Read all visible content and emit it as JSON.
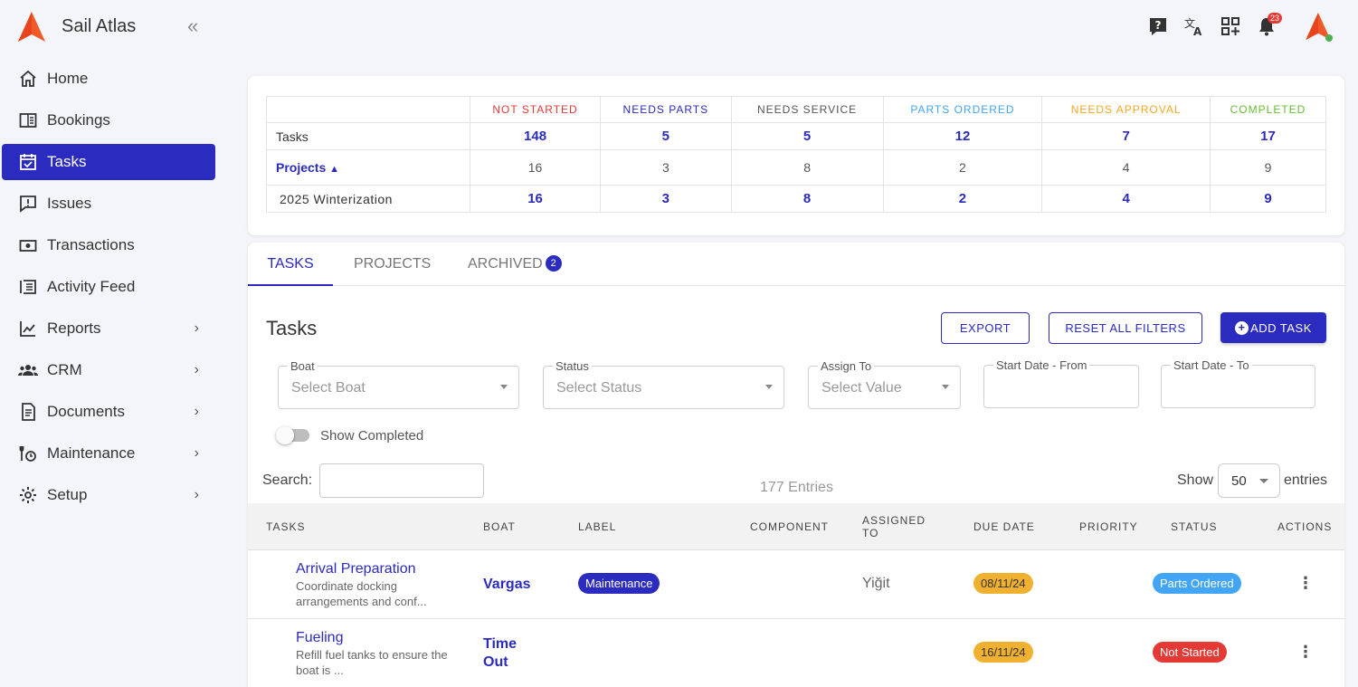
{
  "app": {
    "brand": "Sail Atlas",
    "notifications_count": "23"
  },
  "sidebar": {
    "items": [
      {
        "label": "Home",
        "icon": "home-icon"
      },
      {
        "label": "Bookings",
        "icon": "book-icon"
      },
      {
        "label": "Tasks",
        "icon": "calendar-check-icon",
        "active": true
      },
      {
        "label": "Issues",
        "icon": "issue-icon"
      },
      {
        "label": "Transactions",
        "icon": "money-icon"
      },
      {
        "label": "Activity Feed",
        "icon": "feed-icon"
      },
      {
        "label": "Reports",
        "icon": "chart-icon",
        "has_submenu": true
      },
      {
        "label": "CRM",
        "icon": "people-icon",
        "has_submenu": true
      },
      {
        "label": "Documents",
        "icon": "documents-icon",
        "has_submenu": true
      },
      {
        "label": "Maintenance",
        "icon": "wrench-icon",
        "has_submenu": true
      },
      {
        "label": "Setup",
        "icon": "gear-icon",
        "has_submenu": true
      }
    ]
  },
  "summary": {
    "columns": [
      {
        "label": "NOT STARTED",
        "color": "#e53935"
      },
      {
        "label": "NEEDS PARTS",
        "color": "#2b2bbf"
      },
      {
        "label": "NEEDS SERVICE",
        "color": "#555555"
      },
      {
        "label": "PARTS ORDERED",
        "color": "#42a5f5"
      },
      {
        "label": "NEEDS APPROVAL",
        "color": "#f5a623"
      },
      {
        "label": "COMPLETED",
        "color": "#66bb33"
      }
    ],
    "rows": [
      {
        "label": "Tasks",
        "values": [
          "148",
          "5",
          "5",
          "12",
          "7",
          "17"
        ]
      },
      {
        "label": "Projects",
        "values": [
          "16",
          "3",
          "8",
          "2",
          "4",
          "9"
        ]
      },
      {
        "label": "2025 Winterization",
        "values": [
          "16",
          "3",
          "8",
          "2",
          "4",
          "9"
        ]
      }
    ]
  },
  "tabs": [
    {
      "label": "TASKS",
      "active": true
    },
    {
      "label": "PROJECTS"
    },
    {
      "label": "ARCHIVED",
      "badge": "2"
    }
  ],
  "tasks": {
    "title": "Tasks",
    "buttons": {
      "export": "EXPORT",
      "reset": "RESET ALL FILTERS",
      "add": "ADD TASK"
    },
    "filters": {
      "boat": {
        "label": "Boat",
        "placeholder": "Select Boat"
      },
      "status": {
        "label": "Status",
        "placeholder": "Select Status"
      },
      "assign": {
        "label": "Assign To",
        "placeholder": "Select Value"
      },
      "start_from": {
        "label": "Start Date - From"
      },
      "start_to": {
        "label": "Start Date - To"
      }
    },
    "show_completed": "Show Completed",
    "search_label": "Search:",
    "entries_count": "177 Entries",
    "show_label": "Show",
    "page_size": "50",
    "entries_label": "entries",
    "columns": [
      "TASKS",
      "BOAT",
      "LABEL",
      "COMPONENT",
      "ASSIGNED TO",
      "DUE DATE",
      "PRIORITY",
      "STATUS",
      "ACTIONS"
    ],
    "rows": [
      {
        "title": "Arrival Preparation",
        "desc": "Coordinate docking arrangements and conf...",
        "boat": "Vargas",
        "label": "Maintenance",
        "assigned": "Yiğit",
        "due": "08/11/24",
        "status": "Parts Ordered",
        "status_color": "#42a5f5"
      },
      {
        "title": "Fueling",
        "desc": "Refill fuel tanks to ensure the boat is ...",
        "boat_line1": "Time",
        "boat_line2": "Out",
        "due": "16/11/24",
        "status": "Not Started",
        "status_color": "#e53935"
      }
    ]
  }
}
